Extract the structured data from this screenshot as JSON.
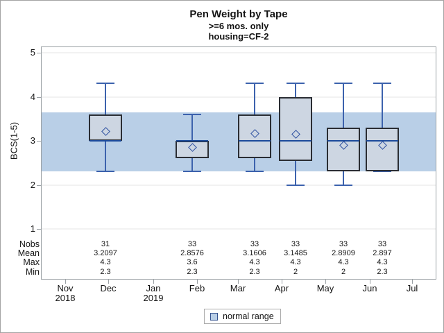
{
  "header": {
    "title": "Pen Weight by Tape",
    "subtitle1": ">=6 mos. only",
    "subtitle2": "housing=CF-2"
  },
  "legend": {
    "label": "normal range"
  },
  "colors": {
    "band": "#b9cfe7",
    "box_fill": "#cdd6e2",
    "whisker": "#3c62ad",
    "median": "#1b4a9b",
    "diamond": "#2d50a0",
    "box_border": "#2a2d33",
    "frame": "#9aa0a4",
    "grid": "#f2f2f2",
    "text": "#141414",
    "legend_swatch_border": "#35538f"
  },
  "chart_data": {
    "type": "boxplot",
    "title": "Pen Weight by Tape",
    "subtitles": [
      ">=6 mos. only",
      "housing=CF-2"
    ],
    "ylabel": "BCS(1-5)",
    "yticks": [
      5,
      4,
      3,
      2,
      1
    ],
    "ylim": [
      0.85,
      5.1
    ],
    "grid": true,
    "normal_range": {
      "low": 2.3,
      "high": 3.65,
      "label": "normal range"
    },
    "x_ticks": [
      "Nov",
      "Dec",
      "Jan",
      "Feb",
      "Mar",
      "Apr",
      "May",
      "Jun",
      "Jul"
    ],
    "x_year_labels": {
      "Nov": "2018",
      "Jan": "2019"
    },
    "legend_position": "bottom-center",
    "series": [
      {
        "month": "Dec",
        "nobs": 31,
        "mean": 3.2097,
        "max": 4.3,
        "min": 2.3,
        "q1": 3.0,
        "q3": 3.6,
        "median": 3.0
      },
      {
        "month": "Feb",
        "nobs": 33,
        "mean": 2.8576,
        "max": 3.6,
        "min": 2.3,
        "q1": 2.6,
        "q3": 3.0,
        "median": 3.0
      },
      {
        "month": "Mar",
        "nobs": 33,
        "mean": 3.1606,
        "max": 4.3,
        "min": 2.3,
        "q1": 2.6,
        "q3": 3.6,
        "median": 3.0
      },
      {
        "month": "Apr",
        "nobs": 33,
        "mean": 3.1485,
        "max": 4.3,
        "min": 2.0,
        "q1": 2.55,
        "q3": 4.0,
        "median": 3.0
      },
      {
        "month": "May",
        "nobs": 33,
        "mean": 2.8909,
        "max": 4.3,
        "min": 2.0,
        "q1": 2.3,
        "q3": 3.3,
        "median": 3.0
      },
      {
        "month": "Jun",
        "nobs": 33,
        "mean": 2.897,
        "max": 4.3,
        "min": 2.3,
        "q1": 2.3,
        "q3": 3.3,
        "median": 3.0
      }
    ],
    "stats_table": {
      "row_labels": [
        "Nobs",
        "Mean",
        "Max",
        "Min"
      ],
      "columns": [
        {
          "month": "Dec",
          "values": [
            "31",
            "3.2097",
            "4.3",
            "2.3"
          ]
        },
        {
          "month": "Feb",
          "values": [
            "33",
            "2.8576",
            "3.6",
            "2.3"
          ]
        },
        {
          "month": "Mar",
          "values": [
            "33",
            "3.1606",
            "4.3",
            "2.3"
          ]
        },
        {
          "month": "Apr",
          "values": [
            "33",
            "3.1485",
            "4.3",
            "2"
          ]
        },
        {
          "month": "May",
          "values": [
            "33",
            "2.8909",
            "4.3",
            "2"
          ]
        },
        {
          "month": "Jun",
          "values": [
            "33",
            "2.897",
            "4.3",
            "2.3"
          ]
        }
      ]
    }
  }
}
